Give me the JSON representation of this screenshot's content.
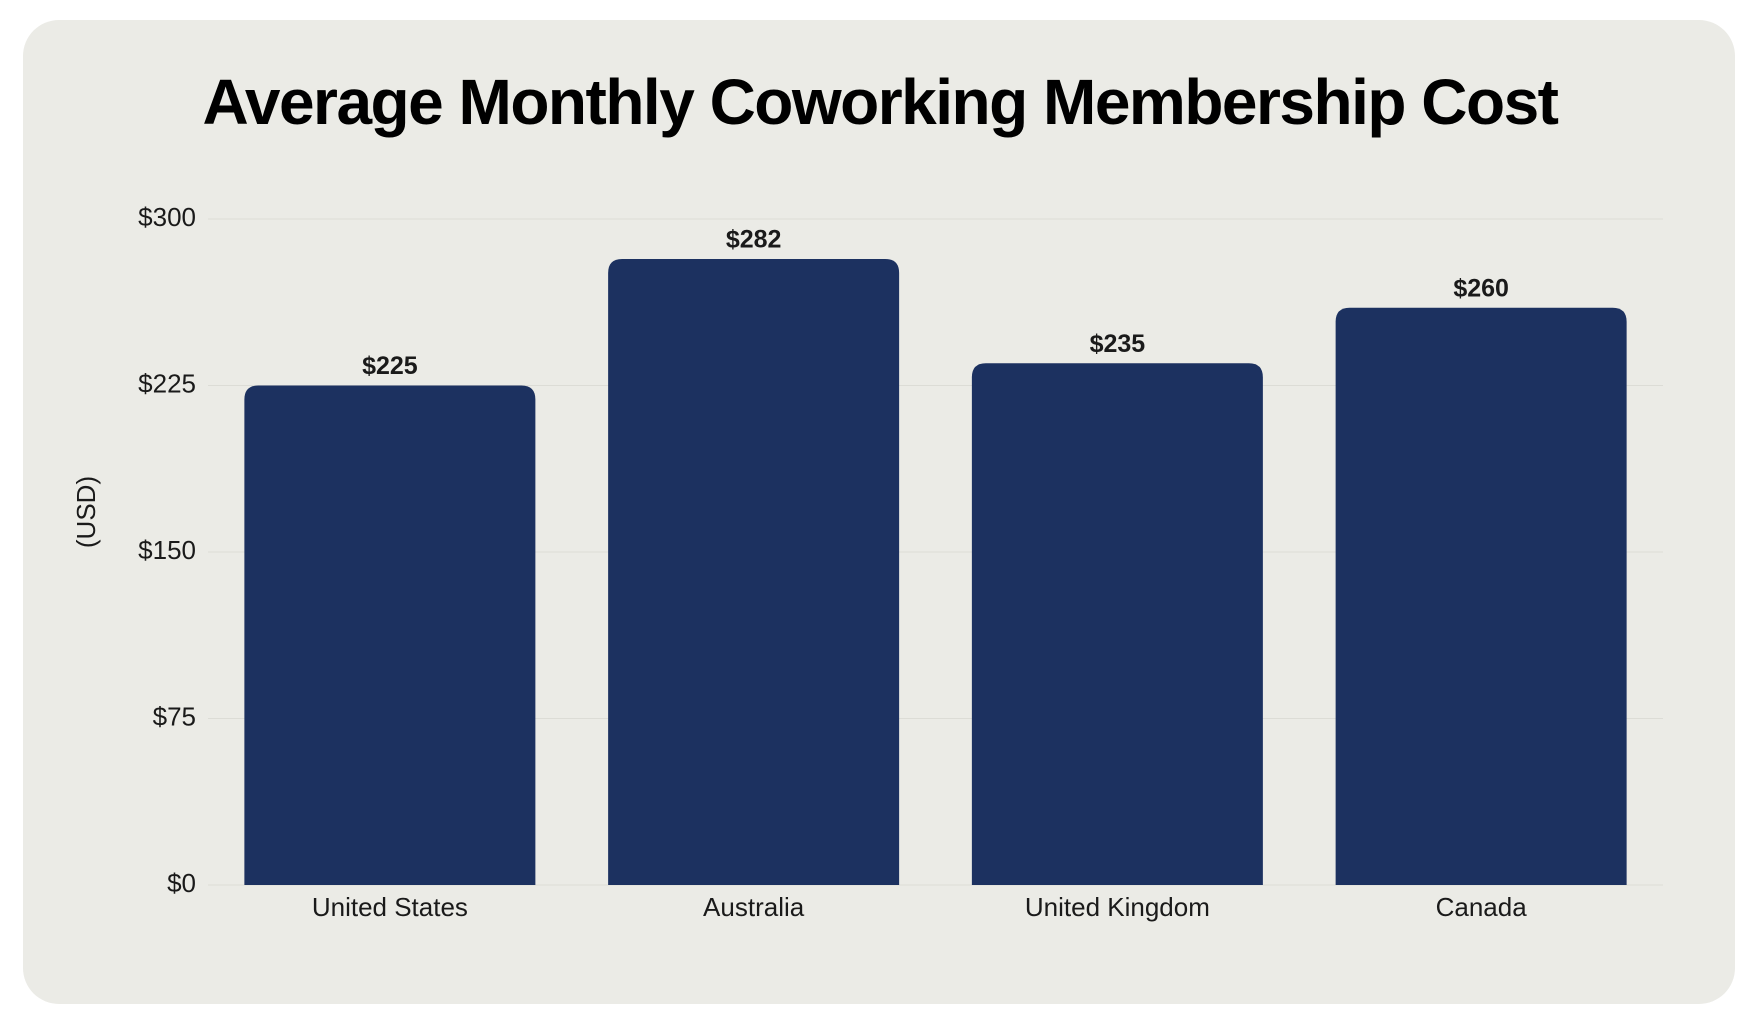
{
  "chart_data": {
    "type": "bar",
    "title": "Average Monthly Coworking Membership Cost",
    "y_label": "(USD)",
    "categories": [
      "United States",
      "Australia",
      "United Kingdom",
      "Canada"
    ],
    "values": [
      225,
      282,
      235,
      260
    ],
    "value_labels": [
      "$225",
      "$282",
      "$235",
      "$260"
    ],
    "color": "#1c3160",
    "ylim": [
      0,
      300
    ],
    "yticks": [
      {
        "value": 0,
        "label": "$0"
      },
      {
        "value": 75,
        "label": "$75"
      },
      {
        "value": 150,
        "label": "$150"
      },
      {
        "value": 225,
        "label": "$225"
      },
      {
        "value": 300,
        "label": "$300"
      }
    ],
    "grid": true
  }
}
